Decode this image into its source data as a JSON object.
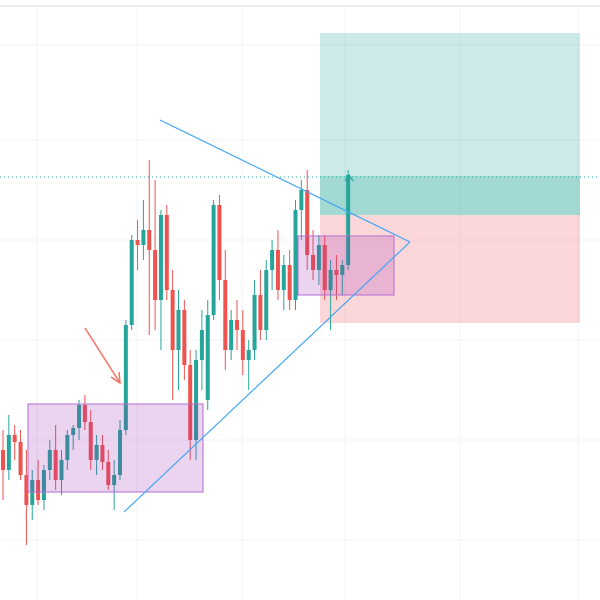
{
  "chart_data": {
    "type": "candlestick",
    "up_color": "#26a69a",
    "down_color": "#ef5350",
    "ylim": [
      0,
      600
    ],
    "candles": [
      {
        "open": 150,
        "high": 170,
        "low": 100,
        "close": 130
      },
      {
        "open": 130,
        "high": 185,
        "low": 120,
        "close": 165
      },
      {
        "open": 165,
        "high": 175,
        "low": 140,
        "close": 158
      },
      {
        "open": 158,
        "high": 170,
        "low": 120,
        "close": 125
      },
      {
        "open": 125,
        "high": 150,
        "low": 55,
        "close": 95
      },
      {
        "open": 95,
        "high": 130,
        "low": 80,
        "close": 120
      },
      {
        "open": 120,
        "high": 140,
        "low": 95,
        "close": 100
      },
      {
        "open": 100,
        "high": 135,
        "low": 90,
        "close": 130
      },
      {
        "open": 130,
        "high": 160,
        "low": 120,
        "close": 150
      },
      {
        "open": 150,
        "high": 175,
        "low": 110,
        "close": 120
      },
      {
        "open": 120,
        "high": 150,
        "low": 105,
        "close": 140
      },
      {
        "open": 140,
        "high": 170,
        "low": 130,
        "close": 165
      },
      {
        "open": 165,
        "high": 175,
        "low": 150,
        "close": 172
      },
      {
        "open": 172,
        "high": 200,
        "low": 160,
        "close": 195
      },
      {
        "open": 195,
        "high": 205,
        "low": 170,
        "close": 178
      },
      {
        "open": 178,
        "high": 190,
        "low": 130,
        "close": 140
      },
      {
        "open": 140,
        "high": 165,
        "low": 125,
        "close": 155
      },
      {
        "open": 155,
        "high": 165,
        "low": 130,
        "close": 138
      },
      {
        "open": 138,
        "high": 150,
        "low": 110,
        "close": 115
      },
      {
        "open": 115,
        "high": 140,
        "low": 90,
        "close": 125
      },
      {
        "open": 125,
        "high": 180,
        "low": 120,
        "close": 170
      },
      {
        "open": 170,
        "high": 280,
        "low": 165,
        "close": 275
      },
      {
        "open": 275,
        "high": 365,
        "low": 270,
        "close": 360
      },
      {
        "open": 360,
        "high": 380,
        "low": 330,
        "close": 355
      },
      {
        "open": 355,
        "high": 400,
        "low": 340,
        "close": 370
      },
      {
        "open": 370,
        "high": 440,
        "low": 265,
        "close": 350
      },
      {
        "open": 350,
        "high": 420,
        "low": 270,
        "close": 300
      },
      {
        "open": 300,
        "high": 390,
        "low": 250,
        "close": 385
      },
      {
        "open": 385,
        "high": 395,
        "low": 300,
        "close": 310
      },
      {
        "open": 310,
        "high": 330,
        "low": 200,
        "close": 250
      },
      {
        "open": 250,
        "high": 310,
        "low": 210,
        "close": 290
      },
      {
        "open": 290,
        "high": 300,
        "low": 220,
        "close": 235
      },
      {
        "open": 235,
        "high": 250,
        "low": 140,
        "close": 160
      },
      {
        "open": 160,
        "high": 250,
        "low": 140,
        "close": 240
      },
      {
        "open": 240,
        "high": 290,
        "low": 210,
        "close": 270
      },
      {
        "open": 200,
        "high": 300,
        "low": 190,
        "close": 285
      },
      {
        "open": 285,
        "high": 400,
        "low": 280,
        "close": 395
      },
      {
        "open": 395,
        "high": 405,
        "low": 300,
        "close": 320
      },
      {
        "open": 320,
        "high": 350,
        "low": 230,
        "close": 250
      },
      {
        "open": 250,
        "high": 290,
        "low": 240,
        "close": 280
      },
      {
        "open": 280,
        "high": 300,
        "low": 250,
        "close": 270
      },
      {
        "open": 270,
        "high": 290,
        "low": 225,
        "close": 240
      },
      {
        "open": 240,
        "high": 260,
        "low": 210,
        "close": 250
      },
      {
        "open": 250,
        "high": 320,
        "low": 240,
        "close": 305
      },
      {
        "open": 305,
        "high": 330,
        "low": 260,
        "close": 270
      },
      {
        "open": 270,
        "high": 340,
        "low": 260,
        "close": 330
      },
      {
        "open": 330,
        "high": 360,
        "low": 310,
        "close": 350
      },
      {
        "open": 350,
        "high": 370,
        "low": 300,
        "close": 310
      },
      {
        "open": 310,
        "high": 345,
        "low": 290,
        "close": 335
      },
      {
        "open": 335,
        "high": 350,
        "low": 290,
        "close": 300
      },
      {
        "open": 300,
        "high": 400,
        "low": 290,
        "close": 390
      },
      {
        "open": 390,
        "high": 420,
        "low": 360,
        "close": 410
      },
      {
        "open": 410,
        "high": 430,
        "low": 330,
        "close": 345
      },
      {
        "open": 345,
        "high": 370,
        "low": 320,
        "close": 330
      },
      {
        "open": 330,
        "high": 365,
        "low": 315,
        "close": 355
      },
      {
        "open": 355,
        "high": 365,
        "low": 300,
        "close": 310
      },
      {
        "open": 310,
        "high": 340,
        "low": 270,
        "close": 330
      },
      {
        "open": 330,
        "high": 345,
        "low": 300,
        "close": 325
      },
      {
        "open": 325,
        "high": 340,
        "low": 305,
        "close": 335
      },
      {
        "open": 335,
        "high": 430,
        "low": 330,
        "close": 425
      }
    ]
  }
}
